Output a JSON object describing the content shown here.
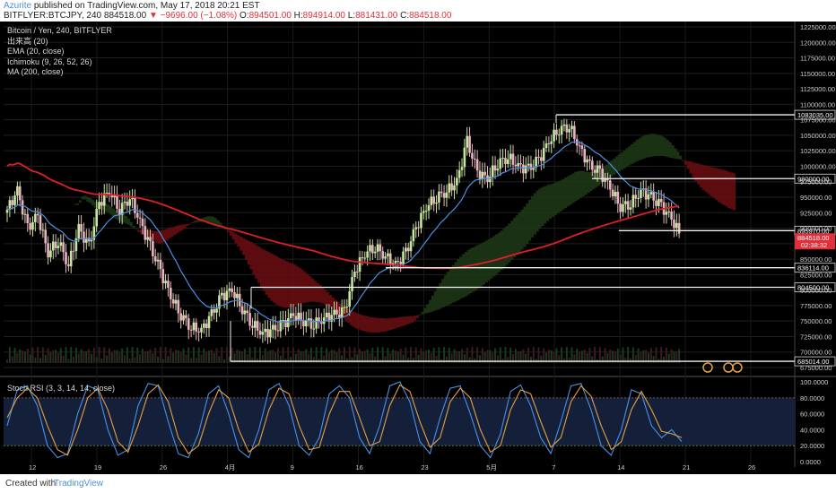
{
  "header": {
    "author": "Azurite",
    "published": "published on TradingView.com, May 17, 2018 20:21 EST",
    "symbol": "BITFLYER:BTCJPY, 240",
    "last": "884518.00",
    "change": "▼ −9696.00 (−1.08%)",
    "open_label": "O:",
    "open": "894501.00",
    "high_label": "H:",
    "high": "894914.00",
    "low_label": "L:",
    "low": "881431.00",
    "close_label": "C:",
    "close": "884518.00"
  },
  "legend": [
    "Bitcoin / Yen, 240, BITFLYER",
    "出来高 (20)",
    "EMA (20, close)",
    "Ichimoku (9, 26, 52, 26)",
    "MA (200, close)"
  ],
  "rsi_label": "Stoch RSI (3, 3, 14, 14, close)",
  "footer": {
    "created": "Created with",
    "brand": "TradingView"
  },
  "colors": {
    "up": "#c8e6a0",
    "down": "#e8b4c0",
    "ema": "#4a90e2",
    "ma200": "#e01e28",
    "cloud_bear": "#6b0e12",
    "cloud_bull": "#1e3a16",
    "rsi_k": "#4a90e2",
    "rsi_d": "#e6a040",
    "rsi_band": "#14203a",
    "price_tag": "#e0303a"
  },
  "chart_data": [
    {
      "type": "candlestick",
      "title": "Bitcoin / Yen, 240, BITFLYER",
      "ylim": [
        675000,
        1225000
      ],
      "yticks": [
        1225000,
        1200000,
        1175000,
        1150000,
        1125000,
        1100000,
        1075000,
        1050000,
        1025000,
        1000000,
        975000,
        950000,
        925000,
        900000,
        875000,
        850000,
        825000,
        800000,
        775000,
        750000,
        725000,
        700000,
        675000
      ],
      "x_tick_labels": [
        "12",
        "19",
        "26",
        "4月",
        "9",
        "16",
        "23",
        "5月",
        "7",
        "14",
        "21",
        "26"
      ],
      "last_price": 884518,
      "countdown": "02:38:32",
      "levels": [
        {
          "value": 1083035,
          "label": "1083035.00"
        },
        {
          "value": 980000,
          "label": "980000.00"
        },
        {
          "value": 895970,
          "label": "895970.00"
        },
        {
          "value": 836114,
          "label": "836114.00"
        },
        {
          "value": 804500,
          "label": "804500.00"
        },
        {
          "value": 685014,
          "label": "685014.00"
        }
      ],
      "close_path": [
        930000,
        960000,
        900000,
        920000,
        860000,
        880000,
        840000,
        900000,
        870000,
        940000,
        960000,
        930000,
        950000,
        910000,
        870000,
        830000,
        790000,
        760000,
        740000,
        735000,
        760000,
        790000,
        800000,
        770000,
        745000,
        730000,
        735000,
        745000,
        760000,
        750000,
        745000,
        755000,
        760000,
        765000,
        830000,
        860000,
        870000,
        855000,
        840000,
        860000,
        900000,
        935000,
        950000,
        960000,
        975000,
        1040000,
        990000,
        980000,
        1005000,
        1015000,
        1000000,
        995000,
        1010000,
        1040000,
        1060000,
        1065000,
        1030000,
        1000000,
        990000,
        965000,
        935000,
        940000,
        960000,
        950000,
        935000,
        915000,
        885000
      ]
    },
    {
      "type": "line",
      "title": "Stoch RSI (3, 3, 14, 14, close)",
      "ylim": [
        0,
        100
      ],
      "yticks": [
        100,
        80,
        60,
        40,
        20,
        0
      ],
      "ytick_labels": [
        "100.0000",
        "80.0000",
        "60.0000",
        "40.0000",
        "20.0000",
        "0.0000"
      ],
      "band": [
        20,
        80
      ],
      "series": [
        {
          "values": [
            45,
            90,
            95,
            70,
            20,
            5,
            10,
            60,
            95,
            90,
            40,
            8,
            15,
            70,
            98,
            95,
            50,
            10,
            5,
            35,
            85,
            95,
            60,
            15,
            5,
            40,
            90,
            98,
            70,
            20,
            8,
            30,
            85,
            95,
            80,
            30,
            10,
            45,
            95,
            100,
            75,
            25,
            10,
            55,
            92,
            95,
            60,
            20,
            5,
            35,
            88,
            96,
            70,
            30,
            10,
            50,
            95,
            98,
            65,
            20,
            8,
            40,
            90,
            85,
            45,
            30,
            40,
            25
          ]
        },
        {
          "values": [
            55,
            80,
            92,
            80,
            45,
            15,
            8,
            40,
            80,
            92,
            65,
            25,
            12,
            45,
            85,
            96,
            75,
            30,
            10,
            20,
            60,
            90,
            80,
            40,
            12,
            22,
            65,
            92,
            85,
            45,
            15,
            18,
            60,
            88,
            88,
            55,
            20,
            25,
            70,
            96,
            88,
            50,
            18,
            30,
            75,
            92,
            80,
            40,
            12,
            20,
            65,
            90,
            85,
            50,
            18,
            30,
            75,
            95,
            82,
            45,
            15,
            25,
            65,
            88,
            65,
            38,
            35,
            30
          ]
        }
      ]
    }
  ]
}
